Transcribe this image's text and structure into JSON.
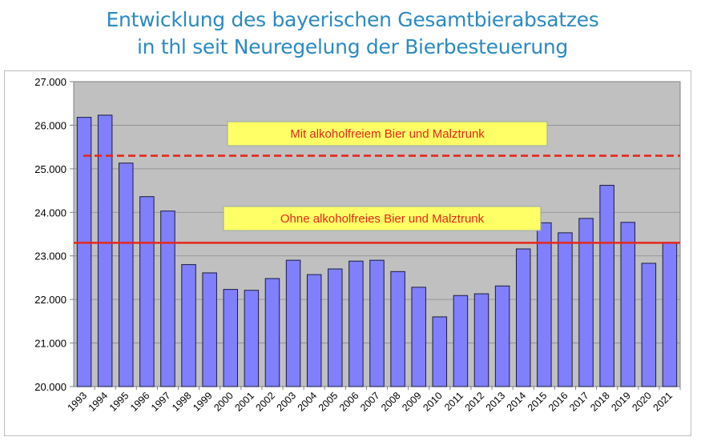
{
  "chart_data": {
    "type": "bar",
    "title": [
      "Entwicklung des bayerischen Gesamtbierabsatzes",
      "in thl seit Neuregelung der Bierbesteuerung"
    ],
    "categories": [
      "1993",
      "1994",
      "1995",
      "1996",
      "1997",
      "1998",
      "1999",
      "2000",
      "2001",
      "2002",
      "2003",
      "2004",
      "2005",
      "2006",
      "2007",
      "2008",
      "2009",
      "2010",
      "2011",
      "2012",
      "2013",
      "2014",
      "2015",
      "2016",
      "2017",
      "2018",
      "2019",
      "2020",
      "2021"
    ],
    "values": [
      26180,
      26230,
      25130,
      24360,
      24030,
      22800,
      22610,
      22230,
      22210,
      22480,
      22900,
      22570,
      22700,
      22880,
      22900,
      22640,
      22280,
      21600,
      22090,
      22130,
      22310,
      23160,
      23760,
      23530,
      23860,
      24620,
      23770,
      22830,
      23310
    ],
    "ylim": [
      20000,
      27000
    ],
    "yticks": [
      20000,
      21000,
      22000,
      23000,
      24000,
      25000,
      26000,
      27000
    ],
    "ytick_labels": [
      "20.000",
      "21.000",
      "22.000",
      "23.000",
      "24.000",
      "25.000",
      "26.000",
      "27.000"
    ],
    "grid": true,
    "reference_lines": [
      {
        "label": "Mit alkoholfreiem Bier und Malztrunk",
        "value": 25300,
        "style": "dashed",
        "color": "#e8261c"
      },
      {
        "label": "Ohne alkoholfreies Bier und Malztrunk",
        "value": 23300,
        "style": "solid",
        "color": "#e8261c"
      }
    ],
    "colors": {
      "bar": "#8080ff",
      "plot_background": "#c0c0c0",
      "label_box": "#ffff66",
      "label_text": "#e8261c",
      "title": "#2b8ac2"
    }
  }
}
